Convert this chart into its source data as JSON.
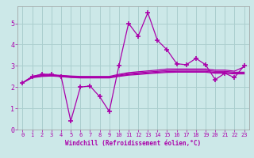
{
  "xlabel": "Windchill (Refroidissement éolien,°C)",
  "background_color": "#cce8e8",
  "grid_color": "#aacece",
  "line_color": "#aa00aa",
  "x_data": [
    0,
    1,
    2,
    3,
    4,
    5,
    6,
    7,
    8,
    9,
    10,
    11,
    12,
    13,
    14,
    15,
    16,
    17,
    18,
    19,
    20,
    21,
    22,
    23
  ],
  "line1": [
    2.2,
    2.5,
    2.6,
    2.6,
    2.5,
    0.4,
    2.0,
    2.05,
    1.55,
    0.85,
    3.0,
    5.0,
    4.4,
    5.5,
    4.2,
    3.75,
    3.1,
    3.05,
    3.35,
    3.05,
    2.35,
    2.65,
    2.45,
    3.0
  ],
  "line2": [
    2.2,
    2.5,
    2.6,
    2.58,
    2.55,
    2.52,
    2.5,
    2.5,
    2.5,
    2.5,
    2.6,
    2.68,
    2.72,
    2.76,
    2.8,
    2.85,
    2.85,
    2.85,
    2.85,
    2.85,
    2.8,
    2.8,
    2.75,
    2.95
  ],
  "line3": [
    2.2,
    2.48,
    2.55,
    2.56,
    2.53,
    2.5,
    2.48,
    2.47,
    2.47,
    2.47,
    2.56,
    2.63,
    2.67,
    2.71,
    2.74,
    2.78,
    2.79,
    2.79,
    2.79,
    2.79,
    2.74,
    2.74,
    2.7,
    2.7
  ],
  "line4": [
    2.2,
    2.46,
    2.52,
    2.54,
    2.51,
    2.47,
    2.45,
    2.45,
    2.45,
    2.45,
    2.53,
    2.59,
    2.63,
    2.66,
    2.7,
    2.73,
    2.74,
    2.74,
    2.74,
    2.74,
    2.69,
    2.69,
    2.65,
    2.65
  ],
  "line5": [
    2.2,
    2.44,
    2.5,
    2.52,
    2.49,
    2.45,
    2.43,
    2.43,
    2.43,
    2.43,
    2.5,
    2.56,
    2.59,
    2.63,
    2.66,
    2.69,
    2.7,
    2.7,
    2.7,
    2.7,
    2.65,
    2.65,
    2.62,
    2.62
  ],
  "ylim": [
    0,
    5.8
  ],
  "xlim": [
    -0.5,
    23.5
  ],
  "yticks": [
    0,
    1,
    2,
    3,
    4,
    5
  ],
  "xticks": [
    0,
    1,
    2,
    3,
    4,
    5,
    6,
    7,
    8,
    9,
    10,
    11,
    12,
    13,
    14,
    15,
    16,
    17,
    18,
    19,
    20,
    21,
    22,
    23
  ]
}
